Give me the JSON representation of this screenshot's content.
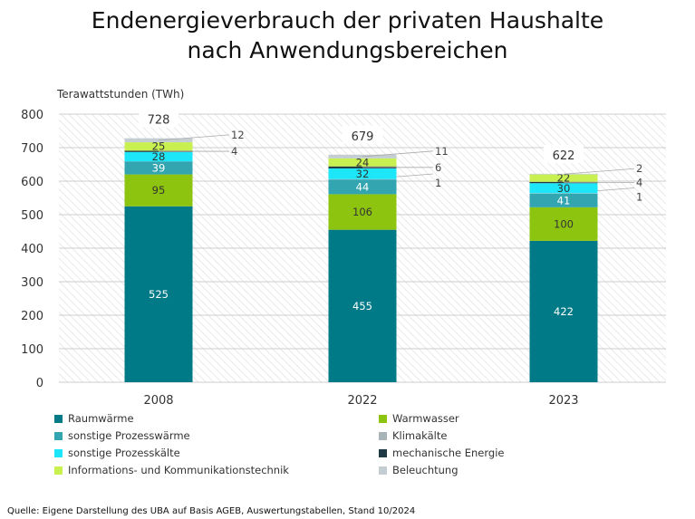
{
  "title_line1": "Endenergieverbrauch der privaten Haushalte",
  "title_line2": "nach Anwendungsbereichen",
  "source": "Quelle: Eigene Darstellung des UBA auf Basis AGEB, Auswertungstabellen, Stand 10/2024",
  "chart_data": {
    "type": "bar",
    "stacked": true,
    "ylabel": "Terawattstunden (TWh)",
    "ylim": [
      0,
      800
    ],
    "yticks": [
      0,
      100,
      200,
      300,
      400,
      500,
      600,
      700,
      800
    ],
    "categories": [
      "2008",
      "2022",
      "2023"
    ],
    "totals": [
      728,
      679,
      622
    ],
    "series": [
      {
        "name": "Raumwärme",
        "color": "#007a87",
        "values": [
          525,
          455,
          422
        ]
      },
      {
        "name": "Warmwasser",
        "color": "#8dc40f",
        "values": [
          95,
          106,
          100
        ]
      },
      {
        "name": "sonstige Prozesswärme",
        "color": "#33a5b0",
        "values": [
          39,
          44,
          41
        ]
      },
      {
        "name": "Klimakälte",
        "color": "#a8b4b8",
        "values": [
          0,
          1,
          1
        ]
      },
      {
        "name": "sonstige Prozesskälte",
        "color": "#1ce6f8",
        "values": [
          28,
          32,
          30
        ]
      },
      {
        "name": "mechanische Energie",
        "color": "#1f3a44",
        "values": [
          4,
          6,
          4
        ]
      },
      {
        "name": "Informations- und Kommunikationstechnik",
        "color": "#c8f050",
        "values": [
          25,
          24,
          22
        ]
      },
      {
        "name": "Beleuchtung",
        "color": "#c4cdd2",
        "values": [
          12,
          11,
          2
        ]
      }
    ],
    "grid": true,
    "legend_position": "bottom"
  }
}
